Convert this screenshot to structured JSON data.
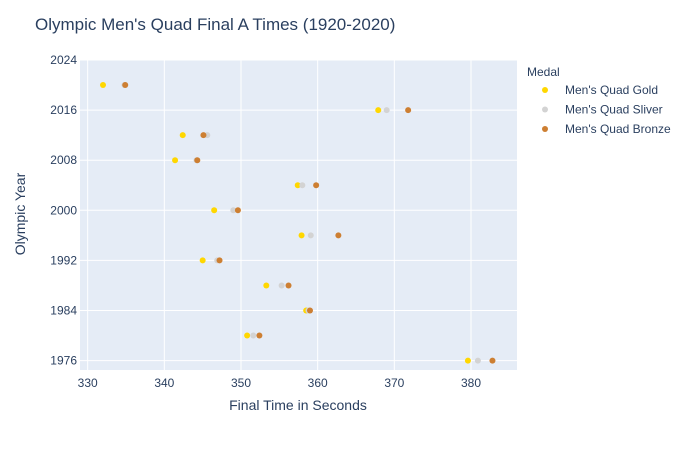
{
  "chart_data": {
    "type": "scatter",
    "title": "Olympic Men's Quad Final A Times (1920-2020)",
    "xlabel": "Final Time in Seconds",
    "ylabel": "Olympic Year",
    "xlim": [
      329,
      386
    ],
    "ylim": [
      1974.5,
      2024
    ],
    "xticks": [
      330,
      340,
      350,
      360,
      370,
      380
    ],
    "yticks": [
      1976,
      1984,
      1992,
      2000,
      2008,
      2016,
      2024
    ],
    "grid": true,
    "legend": {
      "title": "Medal",
      "placement": "right"
    },
    "series": [
      {
        "name": "Men's Quad Gold",
        "color": "#FFD700",
        "points": [
          {
            "x": 379.6,
            "y": 1976
          },
          {
            "x": 350.8,
            "y": 1980
          },
          {
            "x": 358.5,
            "y": 1984
          },
          {
            "x": 353.3,
            "y": 1988
          },
          {
            "x": 345.0,
            "y": 1992
          },
          {
            "x": 357.9,
            "y": 1996
          },
          {
            "x": 346.5,
            "y": 2000
          },
          {
            "x": 357.4,
            "y": 2004
          },
          {
            "x": 341.4,
            "y": 2008
          },
          {
            "x": 342.4,
            "y": 2012
          },
          {
            "x": 367.9,
            "y": 2016
          },
          {
            "x": 332.0,
            "y": 2020
          }
        ]
      },
      {
        "name": "Men's Quad Sliver",
        "color": "#D3D3D3",
        "points": [
          {
            "x": 380.9,
            "y": 1976
          },
          {
            "x": 351.6,
            "y": 1980
          },
          {
            "x": 358.8,
            "y": 1984
          },
          {
            "x": 355.3,
            "y": 1988
          },
          {
            "x": 346.9,
            "y": 1992
          },
          {
            "x": 359.1,
            "y": 1996
          },
          {
            "x": 349.0,
            "y": 2000
          },
          {
            "x": 358.0,
            "y": 2004
          },
          {
            "x": 344.2,
            "y": 2008
          },
          {
            "x": 345.6,
            "y": 2012
          },
          {
            "x": 369.0,
            "y": 2016
          },
          {
            "x": 334.8,
            "y": 2020
          }
        ]
      },
      {
        "name": "Men's Quad Bronze",
        "color": "#CD7F32",
        "points": [
          {
            "x": 382.8,
            "y": 1976
          },
          {
            "x": 352.4,
            "y": 1980
          },
          {
            "x": 359.0,
            "y": 1984
          },
          {
            "x": 356.2,
            "y": 1988
          },
          {
            "x": 347.2,
            "y": 1992
          },
          {
            "x": 362.7,
            "y": 1996
          },
          {
            "x": 349.6,
            "y": 2000
          },
          {
            "x": 359.8,
            "y": 2004
          },
          {
            "x": 344.3,
            "y": 2008
          },
          {
            "x": 345.1,
            "y": 2012
          },
          {
            "x": 371.8,
            "y": 2016
          },
          {
            "x": 334.9,
            "y": 2020
          }
        ]
      }
    ]
  }
}
